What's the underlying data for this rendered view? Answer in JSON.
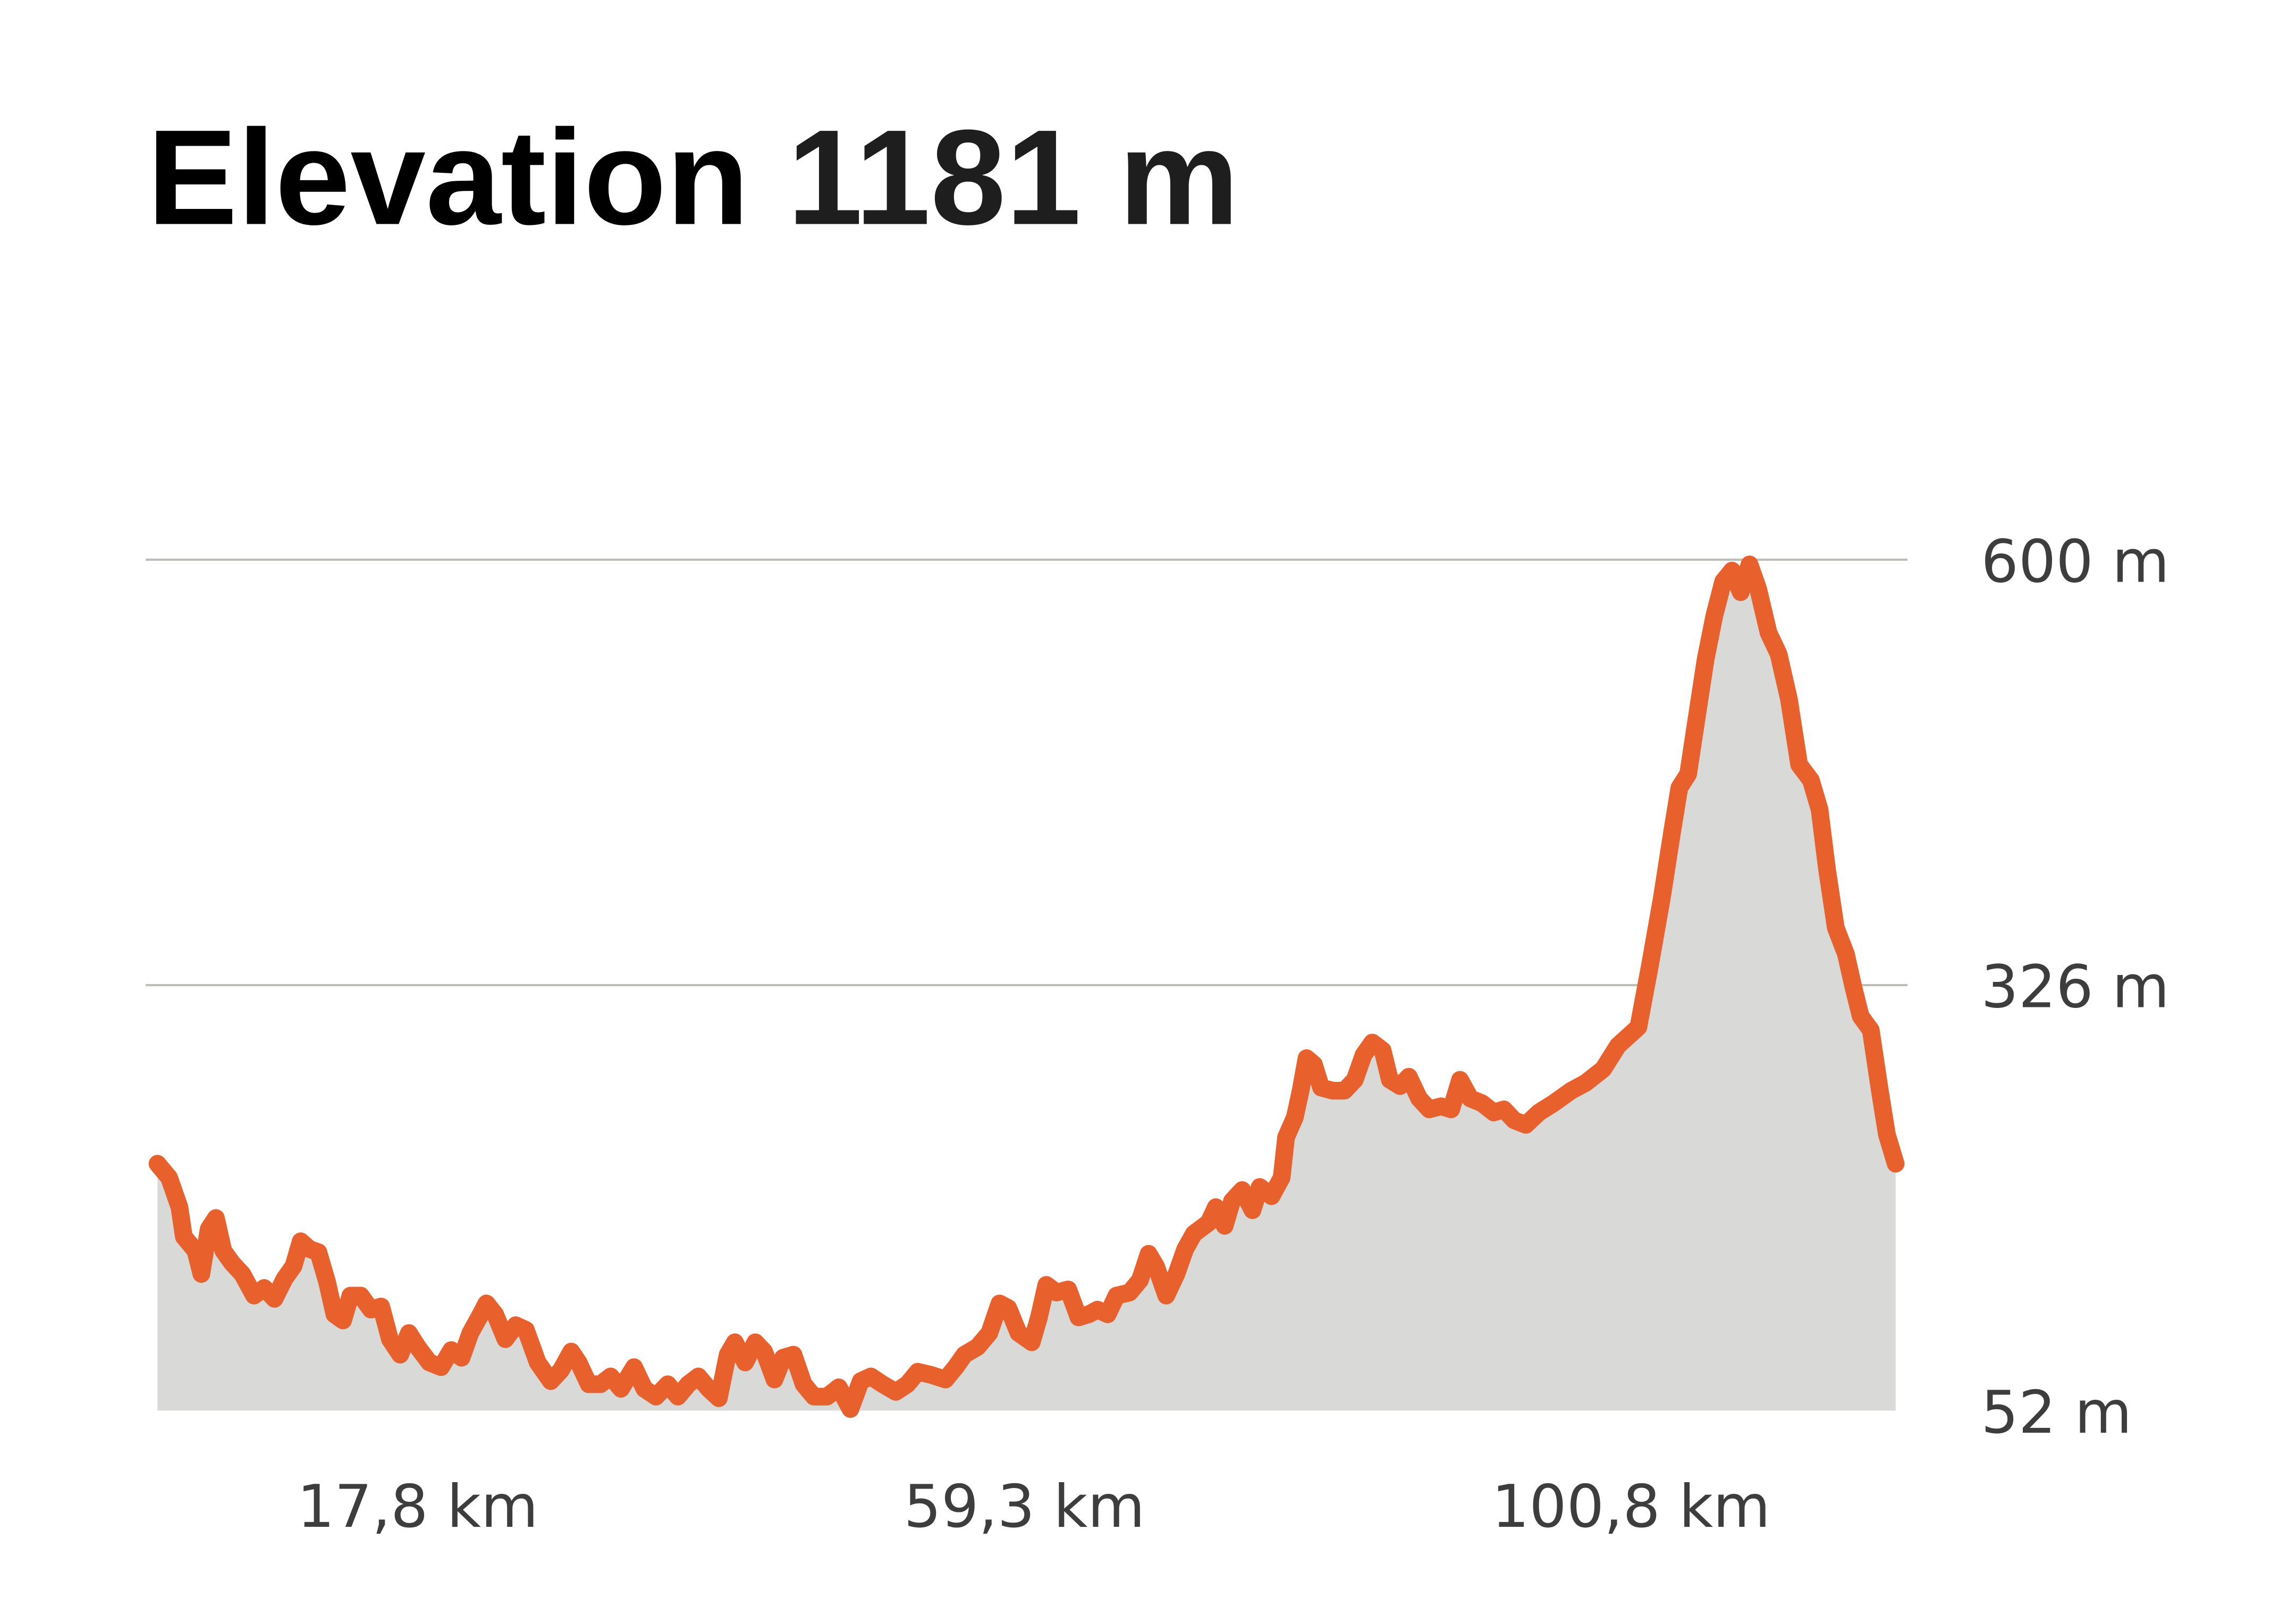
{
  "header": {
    "title": "Elevation",
    "total": "1181 m"
  },
  "chart_data": {
    "type": "area",
    "title": "Elevation 1181 m",
    "xlabel": "",
    "ylabel": "",
    "xlim": [
      0,
      118.9
    ],
    "ylim": [
      52,
      600
    ],
    "grid": true,
    "y_ticks": [
      {
        "value": 600,
        "label": "600 m"
      },
      {
        "value": 326,
        "label": "326 m"
      },
      {
        "value": 52,
        "label": "52 m"
      }
    ],
    "x_ticks": [
      {
        "value": 17.8,
        "label": "17,8 km"
      },
      {
        "value": 59.3,
        "label": "59,3 km"
      },
      {
        "value": 100.8,
        "label": "100,8 km"
      }
    ],
    "colors": {
      "line": "#E8612C",
      "fill": "#D9D9D8",
      "grid": "#BDBDB8"
    },
    "series": [
      {
        "name": "Elevation",
        "x": [
          0,
          0.8,
          1.5,
          1.8,
          2.6,
          3.0,
          3.5,
          4.0,
          4.5,
          5.1,
          5.8,
          6.6,
          7.3,
          8.0,
          8.7,
          9.3,
          9.8,
          10.4,
          11.0,
          11.6,
          12.1,
          12.7,
          13.2,
          13.9,
          14.6,
          15.3,
          15.9,
          16.6,
          17.2,
          17.8,
          18.6,
          19.4,
          20.1,
          20.8,
          21.4,
          22.0,
          22.5,
          23.1,
          23.8,
          24.5,
          25.2,
          26.0,
          26.9,
          27.6,
          28.3,
          28.8,
          29.5,
          30.3,
          31.0,
          31.7,
          32.6,
          33.3,
          34.1,
          34.9,
          35.6,
          36.3,
          37.0,
          37.7,
          38.4,
          39.0,
          39.5,
          40.2,
          40.9,
          41.5,
          42.2,
          42.8,
          43.5,
          44.2,
          44.9,
          45.8,
          46.6,
          47.4,
          48.1,
          48.8,
          49.6,
          50.5,
          51.3,
          52.0,
          52.9,
          53.9,
          54.6,
          55.2,
          56.1,
          56.9,
          57.6,
          58.2,
          58.9,
          59.8,
          60.3,
          60.8,
          61.5,
          62.3,
          63.0,
          63.7,
          64.3,
          65.0,
          65.6,
          66.5,
          67.2,
          67.8,
          68.3,
          69.0,
          69.7,
          70.3,
          70.9,
          71.9,
          72.4,
          73.0,
          73.5,
          74.2,
          74.9,
          75.4,
          76.2,
          76.9,
          77.2,
          77.8,
          78.2,
          78.6,
          79.1,
          79.6,
          80.4,
          81.2,
          81.9,
          82.5,
          83.1,
          83.8,
          84.3,
          85.0,
          85.6,
          86.3,
          87.0,
          87.8,
          88.5,
          89.1,
          89.8,
          90.6,
          91.4,
          92.1,
          92.8,
          93.6,
          94.5,
          95.5,
          96.7,
          97.7,
          98.9,
          99.9,
          101.3,
          102.1,
          102.9,
          103.6,
          104.1,
          104.7,
          105.4,
          105.9,
          106.5,
          107.1,
          107.7,
          108.3,
          108.9,
          109.5,
          110.2,
          110.9,
          111.6,
          112.3,
          113.1,
          113.7,
          114.2,
          114.8,
          115.5,
          116.0,
          116.5,
          117.2,
          117.8,
          118.3,
          118.9
        ],
        "y": [
          211,
          202,
          183,
          164,
          155,
          140,
          169,
          176,
          155,
          147,
          140,
          126,
          131,
          124,
          137,
          145,
          161,
          156,
          154,
          135,
          114,
          110,
          126,
          126,
          117,
          119,
          98,
          88,
          102,
          93,
          83,
          80,
          91,
          86,
          102,
          112,
          121,
          114,
          98,
          107,
          104,
          83,
          71,
          78,
          90,
          83,
          69,
          69,
          74,
          66,
          80,
          66,
          61,
          69,
          61,
          69,
          74,
          66,
          60,
          88,
          96,
          83,
          96,
          90,
          72,
          86,
          88,
          69,
          61,
          61,
          67,
          53,
          71,
          74,
          69,
          64,
          69,
          77,
          75,
          72,
          80,
          88,
          93,
          102,
          121,
          118,
          102,
          96,
          112,
          133,
          128,
          130,
          112,
          114,
          117,
          114,
          126,
          128,
          136,
          153,
          145,
          126,
          140,
          156,
          166,
          173,
          183,
          171,
          187,
          194,
          181,
          196,
          190,
          202,
          228,
          241,
          258,
          279,
          275,
          260,
          258,
          258,
          265,
          281,
          289,
          284,
          265,
          261,
          267,
          253,
          246,
          248,
          246,
          265,
          253,
          250,
          244,
          246,
          239,
          236,
          244,
          250,
          258,
          263,
          272,
          287,
          299,
          339,
          382,
          424,
          453,
          462,
          505,
          536,
          564,
          586,
          593,
          579,
          597,
          581,
          553,
          539,
          510,
          468,
          458,
          439,
          401,
          363,
          346,
          325,
          306,
          297,
          259,
          230,
          211
        ]
      }
    ]
  }
}
